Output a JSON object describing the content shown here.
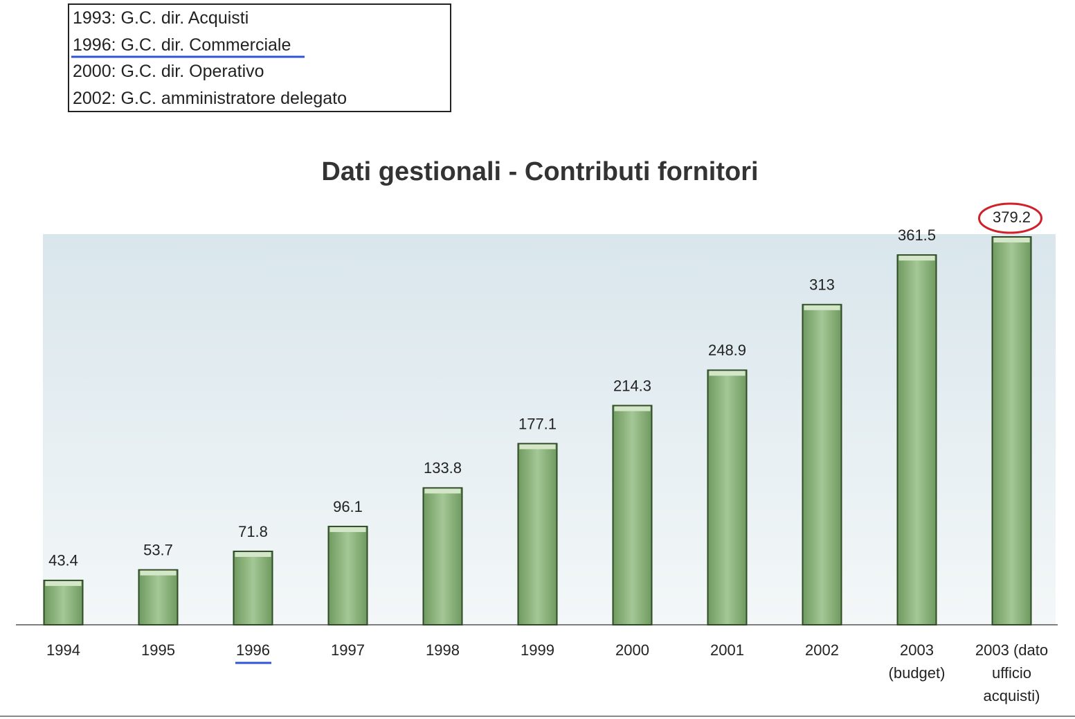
{
  "annotation_box": [
    "1993: G.C. dir. Acquisti",
    "1996: G.C. dir. Commerciale",
    "2000: G.C. dir. Operativo",
    "2002: G.C. amministratore delegato"
  ],
  "chart_data": {
    "type": "bar",
    "title": "Dati gestionali - Contributi fornitori",
    "categories": [
      "1994",
      "1995",
      "1996",
      "1997",
      "1998",
      "1999",
      "2000",
      "2001",
      "2002",
      "2003 (budget)",
      "2003 (dato ufficio acquisti)"
    ],
    "values": [
      43.4,
      53.7,
      71.8,
      96.1,
      133.8,
      177.1,
      214.3,
      248.9,
      313,
      361.5,
      379.2
    ],
    "color": "#8db47c"
  }
}
